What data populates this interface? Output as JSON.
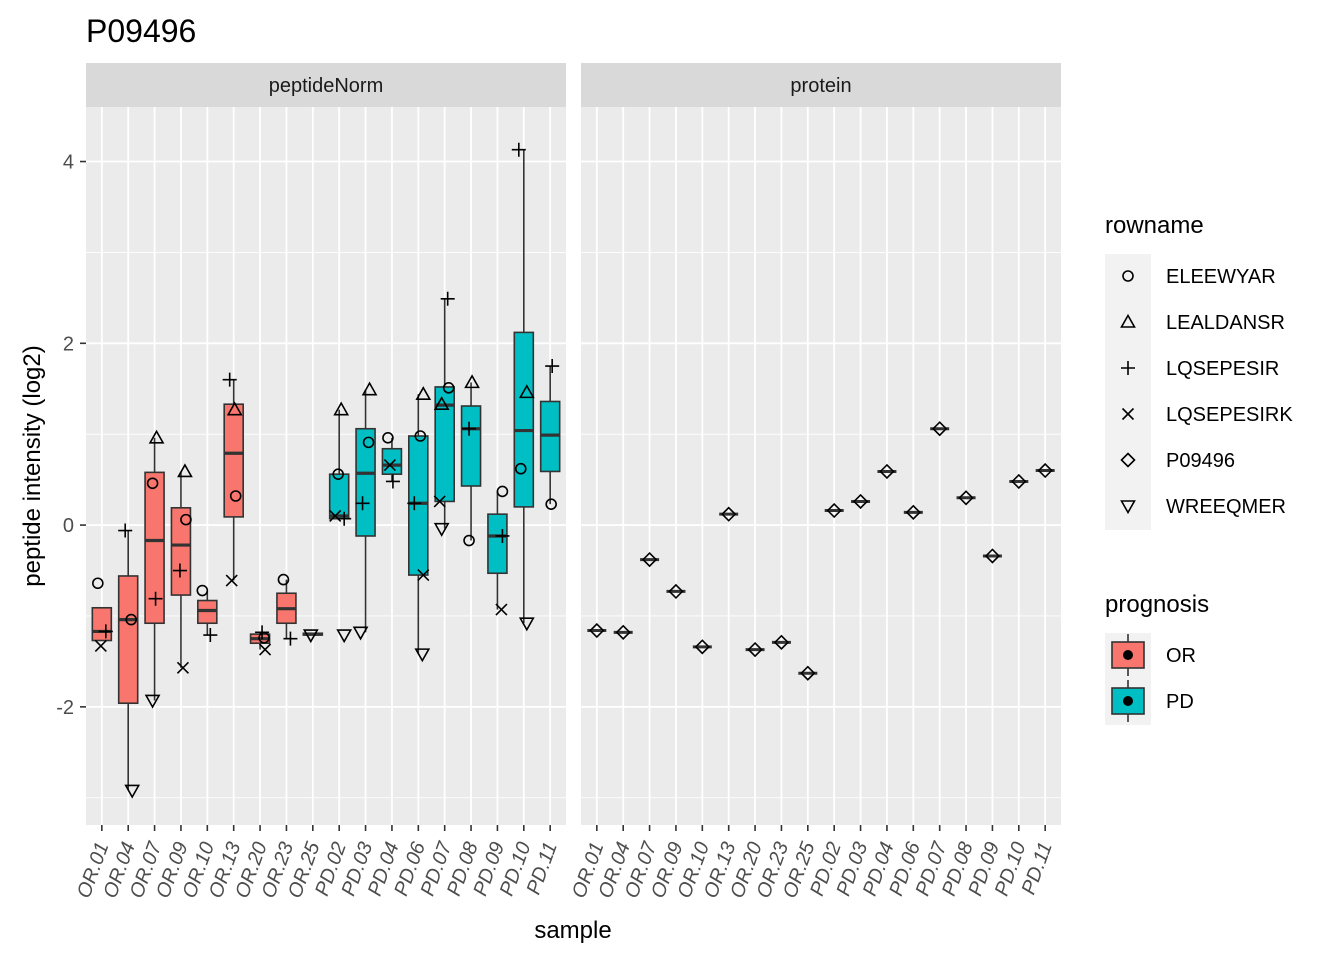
{
  "chart_data": {
    "type": "boxplot",
    "title": "P09496",
    "xlabel": "sample",
    "ylabel": "peptide intensity (log2)",
    "facets": [
      "peptideNorm",
      "protein"
    ],
    "categories": [
      "OR.01",
      "OR.04",
      "OR.07",
      "OR.09",
      "OR.10",
      "OR.13",
      "OR.20",
      "OR.23",
      "OR.25",
      "PD.02",
      "PD.03",
      "PD.04",
      "PD.06",
      "PD.07",
      "PD.08",
      "PD.09",
      "PD.10",
      "PD.11"
    ],
    "prognosis": [
      "OR",
      "OR",
      "OR",
      "OR",
      "OR",
      "OR",
      "OR",
      "OR",
      "OR",
      "PD",
      "PD",
      "PD",
      "PD",
      "PD",
      "PD",
      "PD",
      "PD",
      "PD"
    ],
    "ylim": [
      -3.3,
      4.6
    ],
    "yticks": [
      -2,
      0,
      2,
      4
    ],
    "grid": true,
    "legend_position": "right",
    "legends": {
      "shape": {
        "title": "rowname",
        "entries": [
          {
            "label": "ELEEWYAR",
            "shape": "circle"
          },
          {
            "label": "LEALDANSR",
            "shape": "triangle"
          },
          {
            "label": "LQSEPESIR",
            "shape": "plus"
          },
          {
            "label": "LQSEPESIRK",
            "shape": "cross"
          },
          {
            "label": "P09496",
            "shape": "diamond"
          },
          {
            "label": "WREEQMER",
            "shape": "triangle-down"
          }
        ]
      },
      "fill": {
        "title": "prognosis",
        "entries": [
          {
            "label": "OR",
            "color": "#F8766D"
          },
          {
            "label": "PD",
            "color": "#00BFC4"
          }
        ]
      }
    },
    "peptideNorm": {
      "boxes": [
        {
          "q1": -1.27,
          "median": -1.17,
          "q3": -0.91,
          "low": -1.27,
          "high": -0.91
        },
        {
          "q1": -1.96,
          "median": -1.04,
          "q3": -0.56,
          "low": -2.92,
          "high": -0.06
        },
        {
          "q1": -1.08,
          "median": -0.17,
          "q3": 0.58,
          "low": -1.93,
          "high": 0.96
        },
        {
          "q1": -0.77,
          "median": -0.22,
          "q3": 0.19,
          "low": -1.57,
          "high": 0.59
        },
        {
          "q1": -1.08,
          "median": -0.94,
          "q3": -0.83,
          "low": -1.21,
          "high": -0.72
        },
        {
          "q1": 0.09,
          "median": 0.79,
          "q3": 1.33,
          "low": -0.61,
          "high": 1.6
        },
        {
          "q1": -1.3,
          "median": -1.25,
          "q3": -1.2,
          "low": -1.37,
          "high": -1.18
        },
        {
          "q1": -1.08,
          "median": -0.92,
          "q3": -0.75,
          "low": -1.25,
          "high": -0.6
        },
        {
          "q1": -1.21,
          "median": -1.2,
          "q3": -1.19,
          "low": -1.21,
          "high": -1.19
        },
        {
          "q1": 0.07,
          "median": 0.1,
          "q3": 0.56,
          "low": 0.07,
          "high": 1.27
        },
        {
          "q1": -0.12,
          "median": 0.57,
          "q3": 1.06,
          "low": -1.18,
          "high": 1.49
        },
        {
          "q1": 0.56,
          "median": 0.66,
          "q3": 0.84,
          "low": 0.48,
          "high": 0.96
        },
        {
          "q1": -0.55,
          "median": 0.24,
          "q3": 0.98,
          "low": -1.42,
          "high": 1.44
        },
        {
          "q1": 0.26,
          "median": 1.32,
          "q3": 1.52,
          "low": -0.04,
          "high": 2.49
        },
        {
          "q1": 0.43,
          "median": 1.06,
          "q3": 1.31,
          "low": -0.17,
          "high": 1.57
        },
        {
          "q1": -0.53,
          "median": -0.12,
          "q3": 0.12,
          "low": -0.93,
          "high": 0.37
        },
        {
          "q1": 0.2,
          "median": 1.04,
          "q3": 2.12,
          "low": -1.08,
          "high": 4.13
        },
        {
          "q1": 0.59,
          "median": 0.99,
          "q3": 1.36,
          "low": 0.23,
          "high": 1.75
        }
      ],
      "points": {
        "ELEEWYAR": [
          -0.64,
          -1.04,
          0.46,
          0.06,
          -0.72,
          0.32,
          -1.24,
          -0.6,
          null,
          0.56,
          0.91,
          0.96,
          0.98,
          1.51,
          -0.17,
          0.37,
          0.62,
          0.23
        ],
        "LEALDANSR": [
          null,
          null,
          0.96,
          0.59,
          null,
          1.27,
          null,
          null,
          null,
          1.27,
          1.49,
          null,
          1.44,
          1.33,
          1.57,
          null,
          1.46,
          null
        ],
        "LQSEPESIR": [
          -1.17,
          -0.06,
          -0.81,
          -0.5,
          -1.21,
          1.6,
          -1.18,
          -1.25,
          null,
          0.07,
          0.24,
          0.48,
          0.24,
          2.49,
          1.06,
          -0.12,
          4.13,
          1.75
        ],
        "LQSEPESIRK": [
          -1.33,
          null,
          null,
          -1.57,
          null,
          -0.61,
          -1.37,
          null,
          null,
          0.1,
          null,
          0.66,
          -0.55,
          0.26,
          null,
          -0.93,
          null,
          null
        ],
        "WREEQMER": [
          null,
          -2.92,
          -1.93,
          null,
          null,
          null,
          null,
          null,
          -1.21,
          -1.21,
          -1.18,
          null,
          -1.42,
          -0.04,
          null,
          null,
          -1.08,
          null
        ]
      }
    },
    "protein": {
      "values": [
        -1.16,
        -1.18,
        -0.38,
        -0.73,
        -1.34,
        0.12,
        -1.37,
        -1.29,
        -1.63,
        0.16,
        0.26,
        0.59,
        0.14,
        1.06,
        0.3,
        -0.34,
        0.48,
        0.6
      ]
    }
  }
}
